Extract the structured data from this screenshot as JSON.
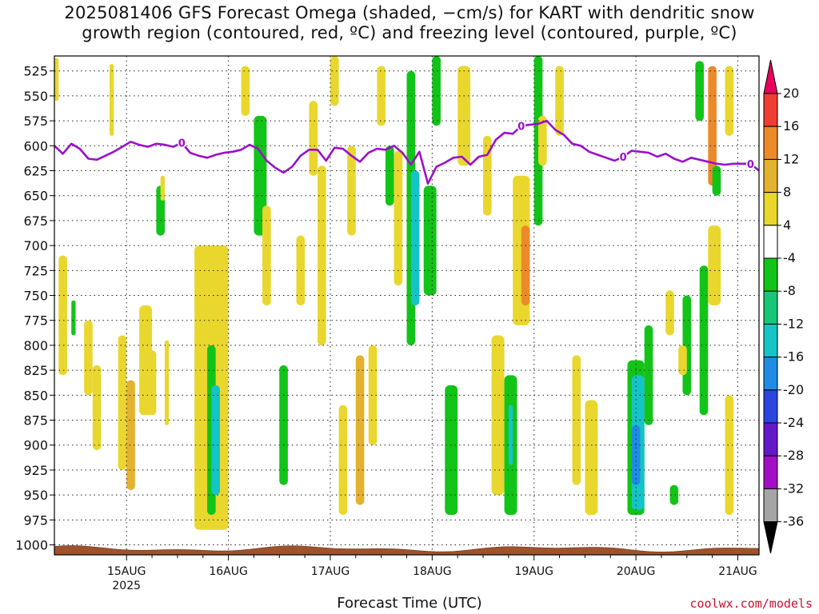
{
  "title_lines": [
    "2025081406 GFS Forecast Omega (shaded, −cm/s) for KART with dendritic snow",
    "growth region (contoured, red, ºC) and freezing level (contoured, purple, ºC)"
  ],
  "credit": "coolwx.com/models",
  "chart_data": {
    "type": "heatmap",
    "title": "2025081406 GFS Forecast Omega (shaded, −cm/s) for KART with dendritic snow growth region (contoured, red, ºC) and freezing level (contoured, purple, ºC)",
    "xlabel": "Forecast Time (UTC)",
    "ylabel": "",
    "x_tick_labels": [
      "15AUG",
      "16AUG",
      "17AUG",
      "18AUG",
      "19AUG",
      "20AUG",
      "21AUG"
    ],
    "x_year_label": "2025",
    "y_ticks": [
      525,
      550,
      575,
      600,
      625,
      650,
      675,
      700,
      725,
      750,
      775,
      800,
      825,
      850,
      875,
      900,
      925,
      950,
      975,
      1000
    ],
    "y_range": [
      510,
      1010
    ],
    "x_range_hours": [
      -17,
      149
    ],
    "grid": true,
    "colorbar": {
      "levels": [
        "20",
        "16",
        "12",
        "8",
        "4",
        "-4",
        "-8",
        "-12",
        "-16",
        "-20",
        "-24",
        "-28",
        "-32",
        "-36"
      ],
      "colors": [
        "#e9005c",
        "#f03e32",
        "#ec8a2a",
        "#e3b22f",
        "#e9d72e",
        "#ffffff",
        "#12c418",
        "#17c777",
        "#14c4c6",
        "#1e8ce4",
        "#2b45e0",
        "#6418c8",
        "#a20ec6",
        "#a5a5a5",
        "#000000"
      ]
    },
    "freezing_level": {
      "label": "0",
      "color": "#9b10c8",
      "points": [
        [
          -17,
          600
        ],
        [
          -15,
          608
        ],
        [
          -13,
          598
        ],
        [
          -11,
          603
        ],
        [
          -9,
          613
        ],
        [
          -7,
          614
        ],
        [
          -5,
          610
        ],
        [
          -3,
          606
        ],
        [
          -1,
          601
        ],
        [
          1,
          596
        ],
        [
          3,
          599
        ],
        [
          5,
          601
        ],
        [
          7,
          598
        ],
        [
          9,
          599
        ],
        [
          11,
          601
        ],
        [
          13,
          597
        ],
        [
          15,
          607
        ],
        [
          17,
          610
        ],
        [
          19,
          612
        ],
        [
          21,
          609
        ],
        [
          23,
          607
        ],
        [
          25,
          606
        ],
        [
          27,
          604
        ],
        [
          29,
          599
        ],
        [
          31,
          603
        ],
        [
          33,
          615
        ],
        [
          35,
          622
        ],
        [
          37,
          627
        ],
        [
          39,
          621
        ],
        [
          41,
          610
        ],
        [
          43,
          604
        ],
        [
          45,
          604
        ],
        [
          47,
          615
        ],
        [
          49,
          602
        ],
        [
          51,
          603
        ],
        [
          53,
          610
        ],
        [
          55,
          616
        ],
        [
          57,
          607
        ],
        [
          59,
          603
        ],
        [
          61,
          604
        ],
        [
          63,
          600
        ],
        [
          65,
          607
        ],
        [
          67,
          619
        ],
        [
          69,
          606
        ],
        [
          71,
          638
        ],
        [
          73,
          621
        ],
        [
          75,
          617
        ],
        [
          77,
          612
        ],
        [
          79,
          611
        ],
        [
          81,
          619
        ],
        [
          83,
          611
        ],
        [
          85,
          609
        ],
        [
          87,
          594
        ],
        [
          89,
          587
        ],
        [
          91,
          588
        ],
        [
          93,
          580
        ],
        [
          95,
          579
        ],
        [
          97,
          578
        ],
        [
          99,
          575
        ],
        [
          101,
          584
        ],
        [
          103,
          589
        ],
        [
          105,
          598
        ],
        [
          107,
          600
        ],
        [
          109,
          606
        ],
        [
          111,
          609
        ],
        [
          113,
          612
        ],
        [
          115,
          615
        ],
        [
          117,
          611
        ],
        [
          119,
          605
        ],
        [
          121,
          606
        ],
        [
          123,
          607
        ],
        [
          125,
          611
        ],
        [
          127,
          608
        ],
        [
          129,
          613
        ],
        [
          131,
          616
        ],
        [
          133,
          612
        ],
        [
          135,
          614
        ],
        [
          137,
          616
        ],
        [
          139,
          618
        ],
        [
          141,
          619
        ],
        [
          143,
          618
        ],
        [
          145,
          618
        ],
        [
          147,
          618
        ],
        [
          149,
          625
        ]
      ]
    },
    "regions": [
      {
        "x": [
          -17,
          -16
        ],
        "p": [
          512,
          555
        ],
        "omega": 5
      },
      {
        "x": [
          -16,
          -14
        ],
        "p": [
          710,
          830
        ],
        "omega": 5
      },
      {
        "x": [
          -13,
          -12
        ],
        "p": [
          755,
          790
        ],
        "omega": -7
      },
      {
        "x": [
          -10,
          -8
        ],
        "p": [
          775,
          850
        ],
        "omega": 5
      },
      {
        "x": [
          -8,
          -6
        ],
        "p": [
          820,
          905
        ],
        "omega": 5
      },
      {
        "x": [
          -4,
          -3
        ],
        "p": [
          518,
          590
        ],
        "omega": 5
      },
      {
        "x": [
          -2,
          0
        ],
        "p": [
          790,
          925
        ],
        "omega": 5
      },
      {
        "x": [
          0,
          2
        ],
        "p": [
          835,
          945
        ],
        "omega": 9
      },
      {
        "x": [
          3,
          6
        ],
        "p": [
          760,
          870
        ],
        "omega": 5
      },
      {
        "x": [
          5,
          7
        ],
        "p": [
          805,
          870
        ],
        "omega": 5
      },
      {
        "x": [
          7,
          9
        ],
        "p": [
          640,
          690
        ],
        "omega": -7
      },
      {
        "x": [
          8,
          9
        ],
        "p": [
          630,
          655
        ],
        "omega": 5
      },
      {
        "x": [
          9,
          10
        ],
        "p": [
          795,
          880
        ],
        "omega": 5
      },
      {
        "x": [
          16,
          24
        ],
        "p": [
          700,
          985
        ],
        "omega": 5
      },
      {
        "x": [
          19,
          21
        ],
        "p": [
          800,
          970
        ],
        "omega": -7
      },
      {
        "x": [
          20,
          22
        ],
        "p": [
          840,
          950
        ],
        "omega": -12
      },
      {
        "x": [
          27,
          29
        ],
        "p": [
          520,
          570
        ],
        "omega": 5
      },
      {
        "x": [
          30,
          33
        ],
        "p": [
          570,
          690
        ],
        "omega": -7
      },
      {
        "x": [
          32,
          34
        ],
        "p": [
          660,
          760
        ],
        "omega": 5
      },
      {
        "x": [
          36,
          38
        ],
        "p": [
          820,
          940
        ],
        "omega": -7
      },
      {
        "x": [
          40,
          42
        ],
        "p": [
          690,
          760
        ],
        "omega": 5
      },
      {
        "x": [
          43,
          45
        ],
        "p": [
          555,
          630
        ],
        "omega": 5
      },
      {
        "x": [
          45,
          47
        ],
        "p": [
          620,
          800
        ],
        "omega": 5
      },
      {
        "x": [
          48,
          50
        ],
        "p": [
          510,
          560
        ],
        "omega": 5
      },
      {
        "x": [
          50,
          52
        ],
        "p": [
          860,
          970
        ],
        "omega": 5
      },
      {
        "x": [
          52,
          54
        ],
        "p": [
          600,
          690
        ],
        "omega": 5
      },
      {
        "x": [
          54,
          56
        ],
        "p": [
          810,
          960
        ],
        "omega": 9
      },
      {
        "x": [
          57,
          59
        ],
        "p": [
          800,
          900
        ],
        "omega": 5
      },
      {
        "x": [
          59,
          61
        ],
        "p": [
          520,
          580
        ],
        "omega": 5
      },
      {
        "x": [
          61,
          63
        ],
        "p": [
          600,
          660
        ],
        "omega": -7
      },
      {
        "x": [
          63,
          65
        ],
        "p": [
          605,
          740
        ],
        "omega": 5
      },
      {
        "x": [
          66,
          68
        ],
        "p": [
          525,
          800
        ],
        "omega": -7
      },
      {
        "x": [
          67,
          69
        ],
        "p": [
          625,
          760
        ],
        "omega": -12
      },
      {
        "x": [
          70,
          73
        ],
        "p": [
          640,
          750
        ],
        "omega": -7
      },
      {
        "x": [
          72,
          74
        ],
        "p": [
          510,
          580
        ],
        "omega": -7
      },
      {
        "x": [
          75,
          78
        ],
        "p": [
          840,
          970
        ],
        "omega": -7
      },
      {
        "x": [
          78,
          81
        ],
        "p": [
          520,
          620
        ],
        "omega": 5
      },
      {
        "x": [
          84,
          86
        ],
        "p": [
          590,
          670
        ],
        "omega": 5
      },
      {
        "x": [
          86,
          89
        ],
        "p": [
          790,
          950
        ],
        "omega": 5
      },
      {
        "x": [
          89,
          92
        ],
        "p": [
          830,
          970
        ],
        "omega": -7
      },
      {
        "x": [
          90,
          91
        ],
        "p": [
          860,
          920
        ],
        "omega": -12
      },
      {
        "x": [
          91,
          95
        ],
        "p": [
          630,
          780
        ],
        "omega": 5
      },
      {
        "x": [
          93,
          95
        ],
        "p": [
          680,
          760
        ],
        "omega": 12
      },
      {
        "x": [
          96,
          98
        ],
        "p": [
          510,
          680
        ],
        "omega": -7
      },
      {
        "x": [
          97,
          99
        ],
        "p": [
          570,
          620
        ],
        "omega": 5
      },
      {
        "x": [
          101,
          103
        ],
        "p": [
          520,
          590
        ],
        "omega": 5
      },
      {
        "x": [
          105,
          107
        ],
        "p": [
          810,
          940
        ],
        "omega": 5
      },
      {
        "x": [
          108,
          111
        ],
        "p": [
          855,
          970
        ],
        "omega": 5
      },
      {
        "x": [
          118,
          122
        ],
        "p": [
          815,
          970
        ],
        "omega": -7
      },
      {
        "x": [
          119,
          122
        ],
        "p": [
          830,
          965
        ],
        "omega": -12
      },
      {
        "x": [
          119,
          121
        ],
        "p": [
          880,
          940
        ],
        "omega": -16
      },
      {
        "x": [
          122,
          124
        ],
        "p": [
          780,
          880
        ],
        "omega": -7
      },
      {
        "x": [
          127,
          129
        ],
        "p": [
          745,
          790
        ],
        "omega": 5
      },
      {
        "x": [
          128,
          130
        ],
        "p": [
          940,
          960
        ],
        "omega": -7
      },
      {
        "x": [
          131,
          133
        ],
        "p": [
          750,
          850
        ],
        "omega": -7
      },
      {
        "x": [
          130,
          132
        ],
        "p": [
          800,
          830
        ],
        "omega": 5
      },
      {
        "x": [
          134,
          136
        ],
        "p": [
          515,
          575
        ],
        "omega": -7
      },
      {
        "x": [
          135,
          137
        ],
        "p": [
          720,
          870
        ],
        "omega": -7
      },
      {
        "x": [
          137,
          139
        ],
        "p": [
          520,
          640
        ],
        "omega": 12
      },
      {
        "x": [
          137,
          140
        ],
        "p": [
          680,
          760
        ],
        "omega": 5
      },
      {
        "x": [
          138,
          140
        ],
        "p": [
          620,
          650
        ],
        "omega": -7
      },
      {
        "x": [
          141,
          143
        ],
        "p": [
          520,
          590
        ],
        "omega": 5
      },
      {
        "x": [
          141,
          143
        ],
        "p": [
          850,
          970
        ],
        "omega": 5
      }
    ]
  }
}
